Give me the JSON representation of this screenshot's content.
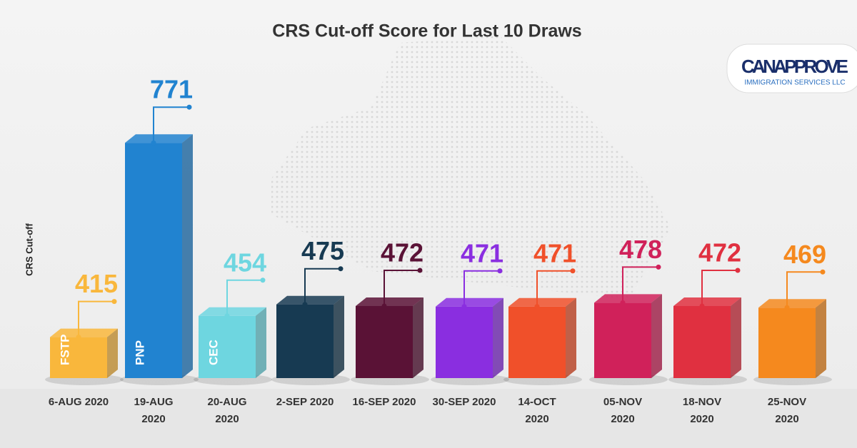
{
  "chart_data": {
    "type": "bar3d",
    "title": "CRS Cut-off Score for Last 10 Draws",
    "y_label": "CRS Cut-off",
    "categories": [
      "6-AUG 2020",
      "19-AUG 2020",
      "20-AUG 2020",
      "2-SEP 2020",
      "16-SEP 2020",
      "30-SEP 2020",
      "14-OCT 2020",
      "05-NOV 2020",
      "18-NOV 2020",
      "25-NOV 2020"
    ],
    "values": [
      415,
      771,
      454,
      475,
      472,
      471,
      471,
      478,
      472,
      469
    ],
    "bar_labels": [
      "FSTP",
      "PNP",
      "CEC",
      null,
      null,
      null,
      null,
      null,
      null,
      null
    ],
    "colors": [
      "#f9b73c",
      "#2183d0",
      "#6ed6e0",
      "#173a52",
      "#5a1236",
      "#8a2ee0",
      "#f0502a",
      "#d0215a",
      "#e03040",
      "#f5891e"
    ],
    "ylim": [
      340,
      800
    ]
  },
  "logo": {
    "name": "CANAPPROVE",
    "tagline": "IMMIGRATION SERVICES LLC"
  }
}
